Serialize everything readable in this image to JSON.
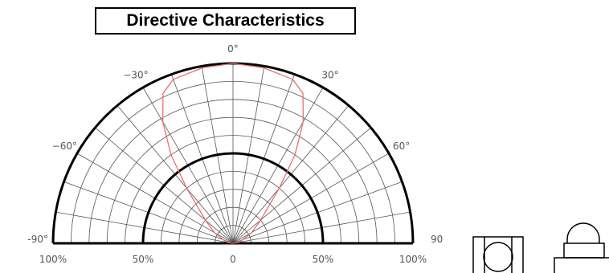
{
  "chart_data": {
    "type": "polar",
    "title": "Directive Characteristics",
    "angle_range": [
      -90,
      90
    ],
    "radius_range": [
      0,
      100
    ],
    "radius_unit": "%",
    "grid": true,
    "angle_labels": [
      {
        "angle": -90,
        "text": "-90°"
      },
      {
        "angle": -60,
        "text": "−60°"
      },
      {
        "angle": -30,
        "text": "−30°"
      },
      {
        "angle": 0,
        "text": "0°"
      },
      {
        "angle": 30,
        "text": "30°"
      },
      {
        "angle": 60,
        "text": "60°"
      },
      {
        "angle": 90,
        "text": "90"
      }
    ],
    "radius_labels": [
      {
        "value": -100,
        "text": "100%"
      },
      {
        "value": -50,
        "text": "50%"
      },
      {
        "value": 0,
        "text": "0"
      },
      {
        "value": 50,
        "text": "50%"
      },
      {
        "value": 100,
        "text": "100%"
      }
    ],
    "series": [
      {
        "color": "#e87070",
        "points": [
          {
            "angle": -90,
            "r": 0
          },
          {
            "angle": -80,
            "r": 3
          },
          {
            "angle": -70,
            "r": 6
          },
          {
            "angle": -60,
            "r": 12
          },
          {
            "angle": -50,
            "r": 20
          },
          {
            "angle": -40,
            "r": 40
          },
          {
            "angle": -35,
            "r": 60
          },
          {
            "angle": -30,
            "r": 78
          },
          {
            "angle": -25,
            "r": 92
          },
          {
            "angle": -20,
            "r": 97
          },
          {
            "angle": -10,
            "r": 99
          },
          {
            "angle": 0,
            "r": 100
          },
          {
            "angle": 10,
            "r": 99
          },
          {
            "angle": 20,
            "r": 97
          },
          {
            "angle": 25,
            "r": 92
          },
          {
            "angle": 30,
            "r": 78
          },
          {
            "angle": 35,
            "r": 60
          },
          {
            "angle": 40,
            "r": 40
          },
          {
            "angle": 50,
            "r": 20
          },
          {
            "angle": 60,
            "r": 12
          },
          {
            "angle": 70,
            "r": 6
          },
          {
            "angle": 80,
            "r": 3
          },
          {
            "angle": 90,
            "r": 0
          }
        ]
      }
    ]
  }
}
